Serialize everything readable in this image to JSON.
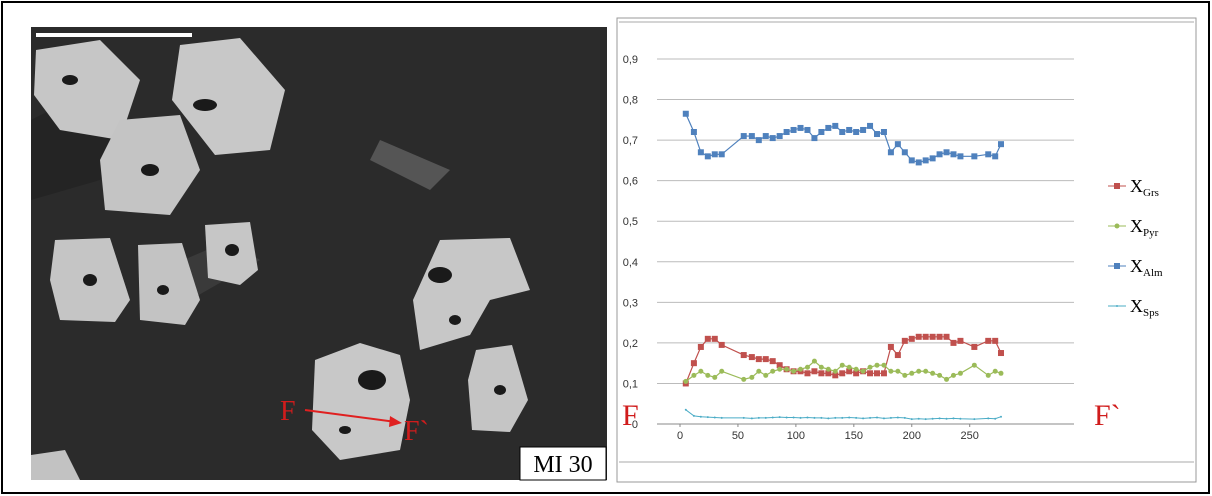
{
  "image": {
    "label": "MI 30",
    "start": "F",
    "end": "F`"
  },
  "chart_data": {
    "type": "line",
    "x": [
      5,
      12,
      18,
      24,
      30,
      36,
      55,
      62,
      68,
      74,
      80,
      86,
      92,
      98,
      104,
      110,
      116,
      122,
      128,
      134,
      140,
      146,
      152,
      158,
      164,
      170,
      176,
      182,
      188,
      194,
      200,
      206,
      212,
      218,
      224,
      230,
      236,
      242,
      254,
      266,
      272,
      277
    ],
    "series": [
      {
        "name": "XGrs",
        "color": "#c0504d",
        "marker": "square",
        "values": [
          0.1,
          0.15,
          0.19,
          0.21,
          0.21,
          0.195,
          0.17,
          0.165,
          0.16,
          0.16,
          0.155,
          0.145,
          0.135,
          0.13,
          0.13,
          0.125,
          0.13,
          0.125,
          0.125,
          0.12,
          0.125,
          0.13,
          0.125,
          0.13,
          0.125,
          0.125,
          0.125,
          0.19,
          0.17,
          0.205,
          0.21,
          0.215,
          0.215,
          0.215,
          0.215,
          0.215,
          0.2,
          0.205,
          0.19,
          0.205,
          0.205,
          0.175
        ]
      },
      {
        "name": "XPyr",
        "color": "#9bbb59",
        "marker": "circle",
        "values": [
          0.105,
          0.12,
          0.13,
          0.12,
          0.115,
          0.13,
          0.11,
          0.115,
          0.13,
          0.12,
          0.13,
          0.135,
          0.135,
          0.13,
          0.135,
          0.14,
          0.155,
          0.14,
          0.135,
          0.13,
          0.145,
          0.14,
          0.135,
          0.13,
          0.14,
          0.145,
          0.145,
          0.13,
          0.13,
          0.12,
          0.125,
          0.13,
          0.13,
          0.125,
          0.12,
          0.11,
          0.12,
          0.125,
          0.145,
          0.12,
          0.13,
          0.125
        ]
      },
      {
        "name": "XAlm",
        "color": "#4f81bd",
        "marker": "square",
        "values": [
          0.765,
          0.72,
          0.67,
          0.66,
          0.665,
          0.665,
          0.71,
          0.71,
          0.7,
          0.71,
          0.705,
          0.71,
          0.72,
          0.725,
          0.73,
          0.725,
          0.705,
          0.72,
          0.73,
          0.735,
          0.72,
          0.725,
          0.72,
          0.725,
          0.735,
          0.715,
          0.72,
          0.67,
          0.69,
          0.67,
          0.65,
          0.645,
          0.65,
          0.655,
          0.665,
          0.67,
          0.665,
          0.66,
          0.66,
          0.665,
          0.66,
          0.69
        ]
      },
      {
        "name": "XSps",
        "color": "#4bacc6",
        "marker": "dot",
        "values": [
          0.035,
          0.02,
          0.018,
          0.017,
          0.016,
          0.015,
          0.015,
          0.014,
          0.015,
          0.015,
          0.016,
          0.017,
          0.016,
          0.016,
          0.015,
          0.016,
          0.015,
          0.015,
          0.014,
          0.015,
          0.015,
          0.016,
          0.015,
          0.014,
          0.015,
          0.016,
          0.014,
          0.015,
          0.016,
          0.015,
          0.012,
          0.013,
          0.012,
          0.013,
          0.014,
          0.013,
          0.014,
          0.013,
          0.012,
          0.014,
          0.013,
          0.018
        ]
      }
    ],
    "xlim": [
      0,
      340
    ],
    "xticks": [
      0,
      50,
      100,
      150,
      200,
      250
    ],
    "ylim": [
      0,
      0.9
    ],
    "yticks": [
      0,
      {
        "value": 0.1,
        "label": "0,1"
      },
      {
        "value": 0.2,
        "label": "0,2"
      },
      {
        "value": 0.3,
        "label": "0,3"
      },
      {
        "value": 0.4,
        "label": "0,4"
      },
      {
        "value": 0.5,
        "label": "0,5"
      },
      {
        "value": 0.6,
        "label": "0,6"
      },
      {
        "value": 0.7,
        "label": "0,7"
      },
      {
        "value": 0.8,
        "label": "0,8"
      },
      {
        "value": 0.9,
        "label": "0,9"
      }
    ],
    "grid": true,
    "annotations": [
      "F",
      "F`"
    ]
  }
}
